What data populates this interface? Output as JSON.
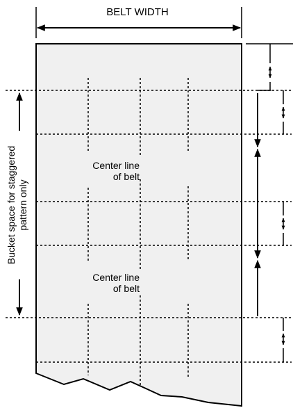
{
  "diagram": {
    "width_label": "BELT WIDTH",
    "center_label_upper": [
      "Center line",
      "of belt"
    ],
    "center_label_lower": [
      "Center line",
      "of belt"
    ],
    "side_label": [
      "Bucket space for staggered",
      "pattern only"
    ]
  }
}
